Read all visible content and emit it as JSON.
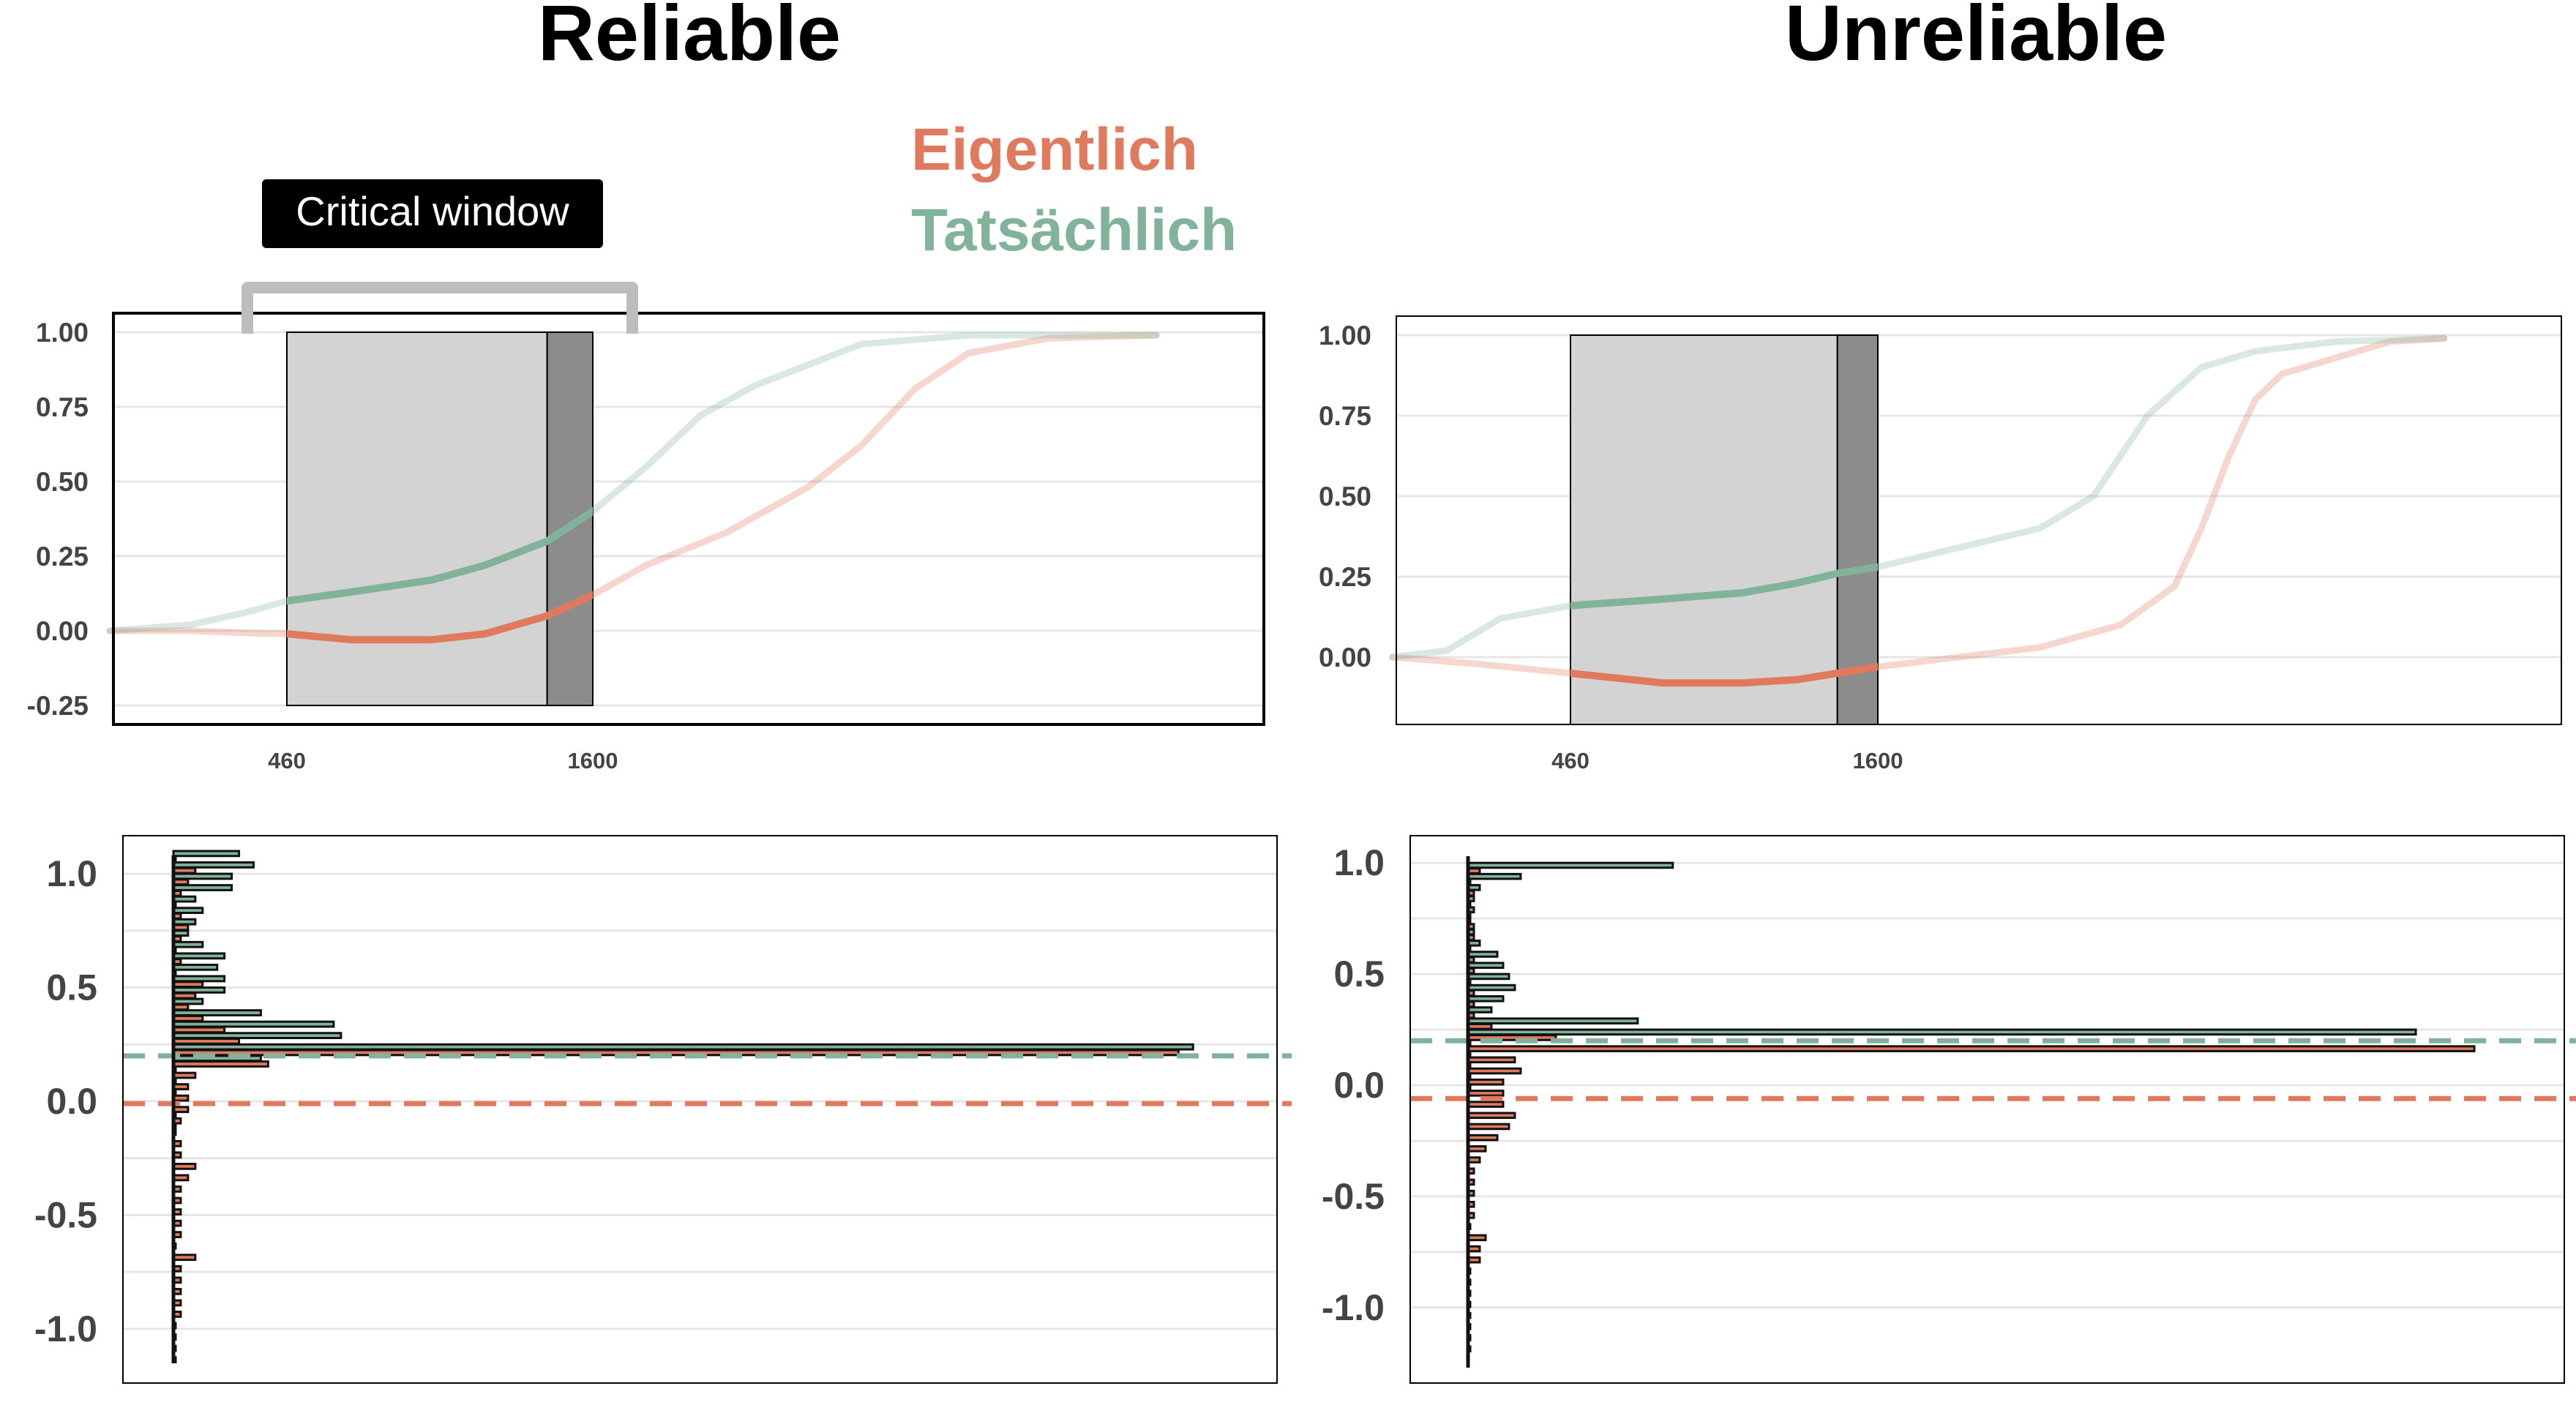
{
  "titles": {
    "left": "Reliable",
    "right": "Unreliable"
  },
  "legend": {
    "items": [
      {
        "label": "Eigentlich",
        "color": "#e07a5f"
      },
      {
        "label": "Tatsächlich",
        "color": "#81b29a"
      }
    ]
  },
  "annotation": {
    "critical_window": "Critical window"
  },
  "colors": {
    "eigentlich": "#e07a5f",
    "tatsaechlich": "#81b29a",
    "window_light": "#d3d3d3",
    "window_dark": "#8c8c8c",
    "bracket": "#bdbdbd",
    "grid": "#e6e6e6"
  },
  "chart_data": [
    {
      "id": "top-left",
      "type": "line",
      "title": "Reliable",
      "x_ticks": [
        460,
        1600
      ],
      "ylim": [
        -0.25,
        1.0
      ],
      "y_ticks": [
        1.0,
        0.75,
        0.5,
        0.25,
        0.0,
        -0.25
      ],
      "y_tick_labels": [
        "1.00",
        "0.75",
        "0.50",
        "0.25",
        "0.00",
        "-0.25"
      ],
      "critical_window_x": [
        460,
        1600
      ],
      "shaded_region_light": [
        460,
        1430
      ],
      "shaded_region_dark": [
        1430,
        1600
      ],
      "series": [
        {
          "name": "Eigentlich",
          "x": [
            -200,
            100,
            400,
            460,
            700,
            1000,
            1200,
            1430,
            1600,
            1800,
            2100,
            2400,
            2600,
            2800,
            3000,
            3300,
            3700
          ],
          "y": [
            0.0,
            0.0,
            -0.01,
            -0.01,
            -0.03,
            -0.03,
            -0.01,
            0.05,
            0.12,
            0.22,
            0.33,
            0.48,
            0.62,
            0.81,
            0.93,
            0.98,
            0.99
          ]
        },
        {
          "name": "Tatsächlich",
          "x": [
            -200,
            100,
            300,
            460,
            700,
            1000,
            1200,
            1430,
            1600,
            1800,
            2000,
            2200,
            2400,
            2600,
            3000,
            3700
          ],
          "y": [
            0.0,
            0.02,
            0.06,
            0.1,
            0.13,
            0.17,
            0.22,
            0.3,
            0.4,
            0.55,
            0.72,
            0.82,
            0.89,
            0.96,
            0.99,
            0.99
          ]
        }
      ]
    },
    {
      "id": "top-right",
      "type": "line",
      "title": "Unreliable",
      "x_ticks": [
        460,
        1600
      ],
      "ylim": [
        -0.15,
        1.0
      ],
      "y_ticks": [
        1.0,
        0.75,
        0.5,
        0.25,
        0.0
      ],
      "y_tick_labels": [
        "1.00",
        "0.75",
        "0.50",
        "0.25",
        "0.00"
      ],
      "critical_window_x": [
        460,
        1600
      ],
      "shaded_region_light": [
        460,
        1450
      ],
      "shaded_region_dark": [
        1450,
        1600
      ],
      "series": [
        {
          "name": "Eigentlich",
          "x": [
            -200,
            100,
            460,
            800,
            1100,
            1300,
            1450,
            1600,
            1900,
            2200,
            2500,
            2700,
            2800,
            2900,
            3000,
            3100,
            3300,
            3500,
            3700
          ],
          "y": [
            0.0,
            -0.02,
            -0.05,
            -0.08,
            -0.08,
            -0.07,
            -0.05,
            -0.03,
            0.0,
            0.03,
            0.1,
            0.22,
            0.4,
            0.62,
            0.8,
            0.88,
            0.93,
            0.98,
            0.99
          ]
        },
        {
          "name": "Tatsächlich",
          "x": [
            -200,
            0,
            200,
            460,
            800,
            1100,
            1300,
            1450,
            1600,
            1900,
            2200,
            2400,
            2600,
            2800,
            3000,
            3300,
            3700
          ],
          "y": [
            0.0,
            0.02,
            0.12,
            0.16,
            0.18,
            0.2,
            0.23,
            0.26,
            0.28,
            0.34,
            0.4,
            0.5,
            0.75,
            0.9,
            0.95,
            0.98,
            0.99
          ]
        }
      ]
    },
    {
      "id": "bottom-left",
      "type": "bar",
      "orientation": "horizontal",
      "ylim": [
        -1.15,
        1.1
      ],
      "y_ticks": [
        1.0,
        0.5,
        0.0,
        -0.5,
        -1.0
      ],
      "y_tick_labels": [
        "1.0",
        "0.5",
        "0.0",
        "-0.5",
        "-1.0"
      ],
      "mean_lines": {
        "Tatsächlich": 0.2,
        "Eigentlich": -0.01
      },
      "bin_width": 0.05,
      "series": [
        {
          "name": "Tatsächlich",
          "bins": [
            1.075,
            1.025,
            0.975,
            0.925,
            0.875,
            0.825,
            0.775,
            0.725,
            0.675,
            0.625,
            0.575,
            0.525,
            0.475,
            0.425,
            0.375,
            0.325,
            0.275,
            0.225,
            0.175,
            0.125,
            0.075,
            0.025,
            -0.025,
            -0.075,
            -0.125
          ],
          "values": [
            9,
            11,
            8,
            8,
            3,
            4,
            3,
            2,
            4,
            7,
            6,
            7,
            7,
            4,
            12,
            22,
            23,
            140,
            12,
            0,
            0,
            0,
            0,
            0,
            0
          ]
        },
        {
          "name": "Eigentlich",
          "bins": [
            1.075,
            1.025,
            0.975,
            0.925,
            0.875,
            0.825,
            0.775,
            0.725,
            0.675,
            0.625,
            0.575,
            0.525,
            0.475,
            0.425,
            0.375,
            0.325,
            0.275,
            0.225,
            0.175,
            0.125,
            0.075,
            0.025,
            -0.025,
            -0.075,
            -0.125,
            -0.175,
            -0.225,
            -0.275,
            -0.325,
            -0.375,
            -0.425,
            -0.475,
            -0.525,
            -0.575,
            -0.625,
            -0.675,
            -0.725,
            -0.775,
            -0.825,
            -0.875,
            -0.925,
            -0.975,
            -1.025,
            -1.075,
            -1.125
          ],
          "values": [
            0,
            3,
            2,
            1,
            0,
            1,
            2,
            1,
            0,
            1,
            0,
            4,
            3,
            2,
            4,
            7,
            9,
            138,
            13,
            3,
            2,
            2,
            2,
            1,
            0,
            1,
            1,
            3,
            2,
            1,
            1,
            1,
            1,
            1,
            0,
            3,
            1,
            1,
            1,
            1,
            1,
            0,
            0,
            0,
            0
          ]
        }
      ],
      "xlim": [
        0,
        145
      ]
    },
    {
      "id": "bottom-right",
      "type": "bar",
      "orientation": "horizontal",
      "ylim": [
        -1.25,
        1.05
      ],
      "y_ticks": [
        1.0,
        0.5,
        0.0,
        -0.5,
        -1.0
      ],
      "y_tick_labels": [
        "1.0",
        "0.5",
        "0.0",
        "-0.5",
        "-1.0"
      ],
      "mean_lines": {
        "Tatsächlich": 0.2,
        "Eigentlich": -0.06
      },
      "bin_width": 0.05,
      "series": [
        {
          "name": "Tatsächlich",
          "bins": [
            0.975,
            0.925,
            0.875,
            0.825,
            0.775,
            0.725,
            0.675,
            0.625,
            0.575,
            0.525,
            0.475,
            0.425,
            0.375,
            0.325,
            0.275,
            0.225,
            0.175,
            0.125,
            0.075,
            0.025,
            -0.025
          ],
          "values": [
            35,
            9,
            2,
            1,
            1,
            0,
            1,
            2,
            5,
            6,
            7,
            8,
            6,
            4,
            29,
            162,
            0,
            0,
            0,
            0,
            0
          ]
        },
        {
          "name": "Eigentlich",
          "bins": [
            0.975,
            0.925,
            0.875,
            0.825,
            0.775,
            0.725,
            0.675,
            0.625,
            0.575,
            0.525,
            0.475,
            0.425,
            0.375,
            0.325,
            0.275,
            0.225,
            0.175,
            0.125,
            0.075,
            0.025,
            -0.025,
            -0.075,
            -0.125,
            -0.175,
            -0.225,
            -0.275,
            -0.325,
            -0.375,
            -0.425,
            -0.475,
            -0.525,
            -0.575,
            -0.625,
            -0.675,
            -0.725,
            -0.775,
            -0.825,
            -0.875,
            -0.925,
            -0.975,
            -1.025,
            -1.075,
            -1.125,
            -1.175
          ],
          "values": [
            2,
            0,
            1,
            0,
            0,
            1,
            1,
            0,
            1,
            1,
            0,
            1,
            1,
            1,
            4,
            15,
            172,
            8,
            9,
            6,
            6,
            6,
            8,
            7,
            5,
            3,
            2,
            1,
            1,
            1,
            1,
            1,
            0,
            3,
            2,
            2,
            0,
            0,
            0,
            0,
            0,
            0,
            0,
            0
          ]
        }
      ],
      "xlim": [
        0,
        180
      ]
    }
  ]
}
